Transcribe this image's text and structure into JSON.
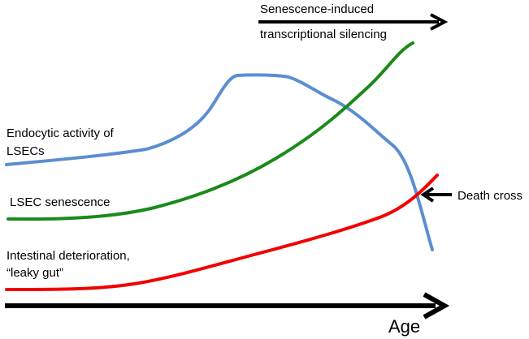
{
  "labels": {
    "silencing_line1": "Senescence-induced",
    "silencing_line2": "transcriptional silencing",
    "endocytic_line1": "Endocytic activity of",
    "endocytic_line2": "LSECs",
    "senescence": "LSEC senescence",
    "intestinal_line1": "Intestinal deterioration,",
    "intestinal_line2": "“leaky gut”",
    "death_cross": "Death cross",
    "age": "Age"
  },
  "colors": {
    "endocytic": "#5b8ed0",
    "senescence": "#1a8a1a",
    "intestinal": "#f20000",
    "arrows": "#000000"
  }
}
